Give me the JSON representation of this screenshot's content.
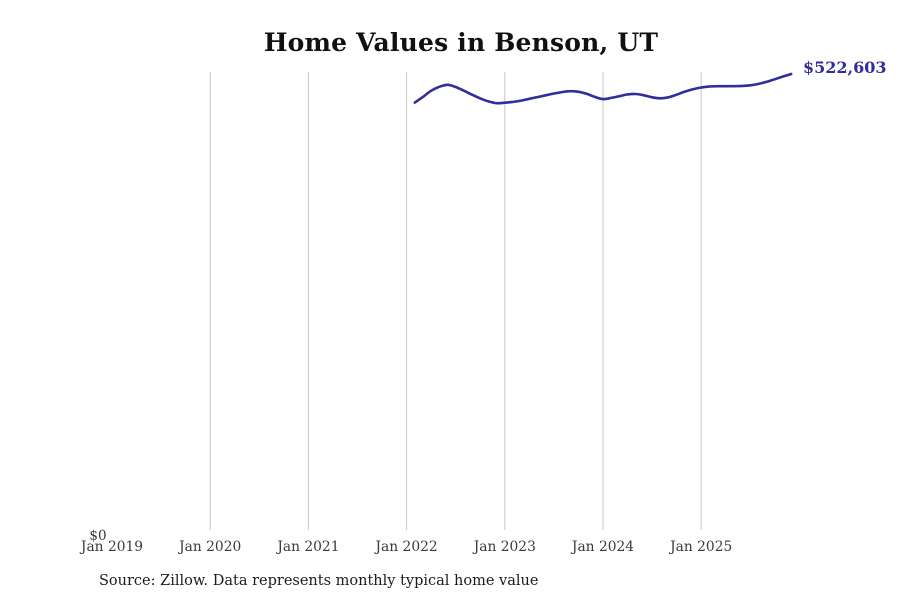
{
  "chart": {
    "title": "Home Values in Benson, UT",
    "source_note": "Source: Zillow. Data represents monthly typical home value",
    "end_label": "$522,603",
    "y_zero_label": "$0",
    "colors": {
      "line": "#312d9b",
      "end_label": "#312d9b",
      "grid": "#c8c8c8",
      "tick_text": "#3a3a3a",
      "title_text": "#111111",
      "source_text": "#1b1b1b"
    }
  },
  "chart_data": {
    "type": "line",
    "title": "Home Values in Benson, UT",
    "xlabel": "",
    "ylabel": "",
    "legend": "none",
    "grid": "vertical-only",
    "ylim": [
      0,
      525000
    ],
    "y_tick_labels": [
      "$0"
    ],
    "x_ticks": [
      {
        "label": "Jan 2019",
        "year": 2019,
        "gridline": false
      },
      {
        "label": "Jan 2020",
        "year": 2020,
        "gridline": true
      },
      {
        "label": "Jan 2021",
        "year": 2021,
        "gridline": true
      },
      {
        "label": "Jan 2022",
        "year": 2022,
        "gridline": true
      },
      {
        "label": "Jan 2023",
        "year": 2023,
        "gridline": true
      },
      {
        "label": "Jan 2024",
        "year": 2024,
        "gridline": true
      },
      {
        "label": "Jan 2025",
        "year": 2025,
        "gridline": true
      }
    ],
    "series": [
      {
        "name": "Monthly typical home value",
        "frequency": "monthly",
        "start_month": "2022-02",
        "end_month": "2025-12",
        "values": [
          490000,
          496500,
          503500,
          508000,
          510300,
          507800,
          503500,
          499000,
          494800,
          491300,
          489300,
          489800,
          490800,
          492300,
          494300,
          496300,
          498300,
          500300,
          502000,
          503000,
          502300,
          500000,
          496500,
          494000,
          495300,
          497300,
          499300,
          499800,
          498300,
          496000,
          494900,
          496000,
          499000,
          502500,
          505300,
          507200,
          508300,
          508700,
          508700,
          508700,
          509000,
          509700,
          511300,
          513700,
          516700,
          519700,
          522603
        ]
      }
    ],
    "end_value": 522603
  }
}
